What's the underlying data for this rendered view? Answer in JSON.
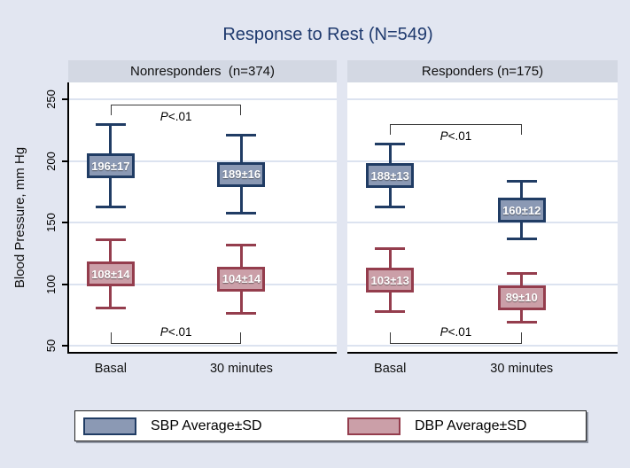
{
  "chart_data": {
    "type": "errorbar",
    "title": "Response to Rest (N=549)",
    "ylabel": "Blood Pressure, mm Hg",
    "ylim": [
      50,
      250
    ],
    "yticks": [
      50,
      100,
      150,
      200,
      250
    ],
    "grid": true,
    "categories": [
      "Basal",
      "30 minutes"
    ],
    "legend_position": "bottom",
    "legend": [
      {
        "key": "sbp",
        "label": "SBP Average±SD"
      },
      {
        "key": "dbp",
        "label": "DBP Average±SD"
      }
    ],
    "series_styles": {
      "sbp": {
        "fill": "#8b99b4",
        "border": "#203c64"
      },
      "dbp": {
        "fill": "#cb9fa8",
        "border": "#943d4d"
      }
    },
    "whisker_multiple": 2,
    "panels": [
      {
        "title": "Nonresponders  (n=374)",
        "n": 374,
        "series": [
          {
            "key": "sbp",
            "name": "SBP",
            "means": [
              196,
              189
            ],
            "sds": [
              17,
              16
            ],
            "labels": [
              "196±17",
              "189±16"
            ]
          },
          {
            "key": "dbp",
            "name": "DBP",
            "means": [
              108,
              104
            ],
            "sds": [
              14,
              14
            ],
            "labels": [
              "108±14",
              "104±14"
            ]
          }
        ],
        "annotations": [
          {
            "series": "sbp",
            "position": "top",
            "prefix": "P",
            "value": "<.01"
          },
          {
            "series": "dbp",
            "position": "bottom",
            "prefix": "P",
            "value": "<.01"
          }
        ]
      },
      {
        "title": "Responders (n=175)",
        "n": 175,
        "series": [
          {
            "key": "sbp",
            "name": "SBP",
            "means": [
              188,
              160
            ],
            "sds": [
              13,
              12
            ],
            "labels": [
              "188±13",
              "160±12"
            ]
          },
          {
            "key": "dbp",
            "name": "DBP",
            "means": [
              103,
              89
            ],
            "sds": [
              13,
              10
            ],
            "labels": [
              "103±13",
              "89±10"
            ]
          }
        ],
        "annotations": [
          {
            "series": "sbp",
            "position": "top",
            "prefix": "P",
            "value": "<.01"
          },
          {
            "series": "dbp",
            "position": "bottom",
            "prefix": "P",
            "value": "<.01"
          }
        ]
      }
    ],
    "colors": {
      "background": "#e2e6f1",
      "panel_header": "#d3d8e3",
      "title_text": "#1f3a6e",
      "gridline": "#dce3f0",
      "axis": "#000000",
      "bracket": "#3a3a3a"
    }
  }
}
